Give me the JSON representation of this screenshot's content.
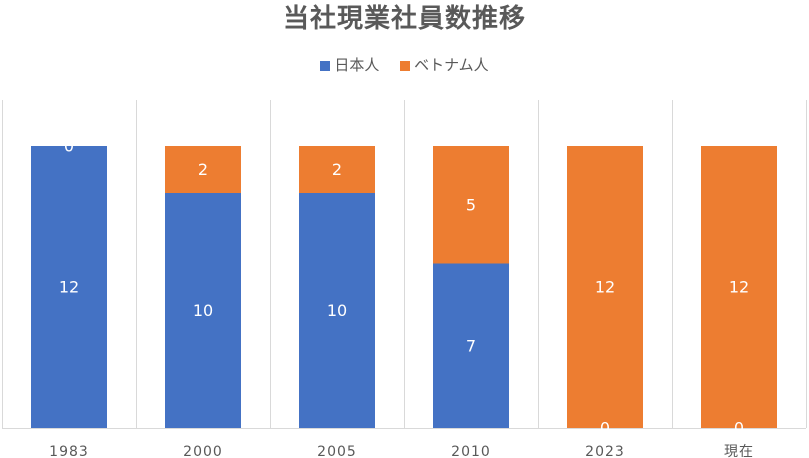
{
  "chart_data": {
    "type": "bar",
    "stacked": true,
    "title": "当社現業社員数推移",
    "categories": [
      "1983",
      "2000",
      "2005",
      "2010",
      "2023",
      "現在"
    ],
    "series": [
      {
        "name": "日本人",
        "values": [
          12,
          10,
          10,
          7,
          0,
          0
        ],
        "color": "#4472C4"
      },
      {
        "name": "ベトナム人",
        "values": [
          0,
          2,
          2,
          5,
          12,
          12
        ],
        "color": "#ED7D31"
      }
    ],
    "xlabel": "",
    "ylabel": "",
    "ylim": [
      0,
      12
    ],
    "grid": "vertical category separators",
    "legend": "top-center"
  }
}
